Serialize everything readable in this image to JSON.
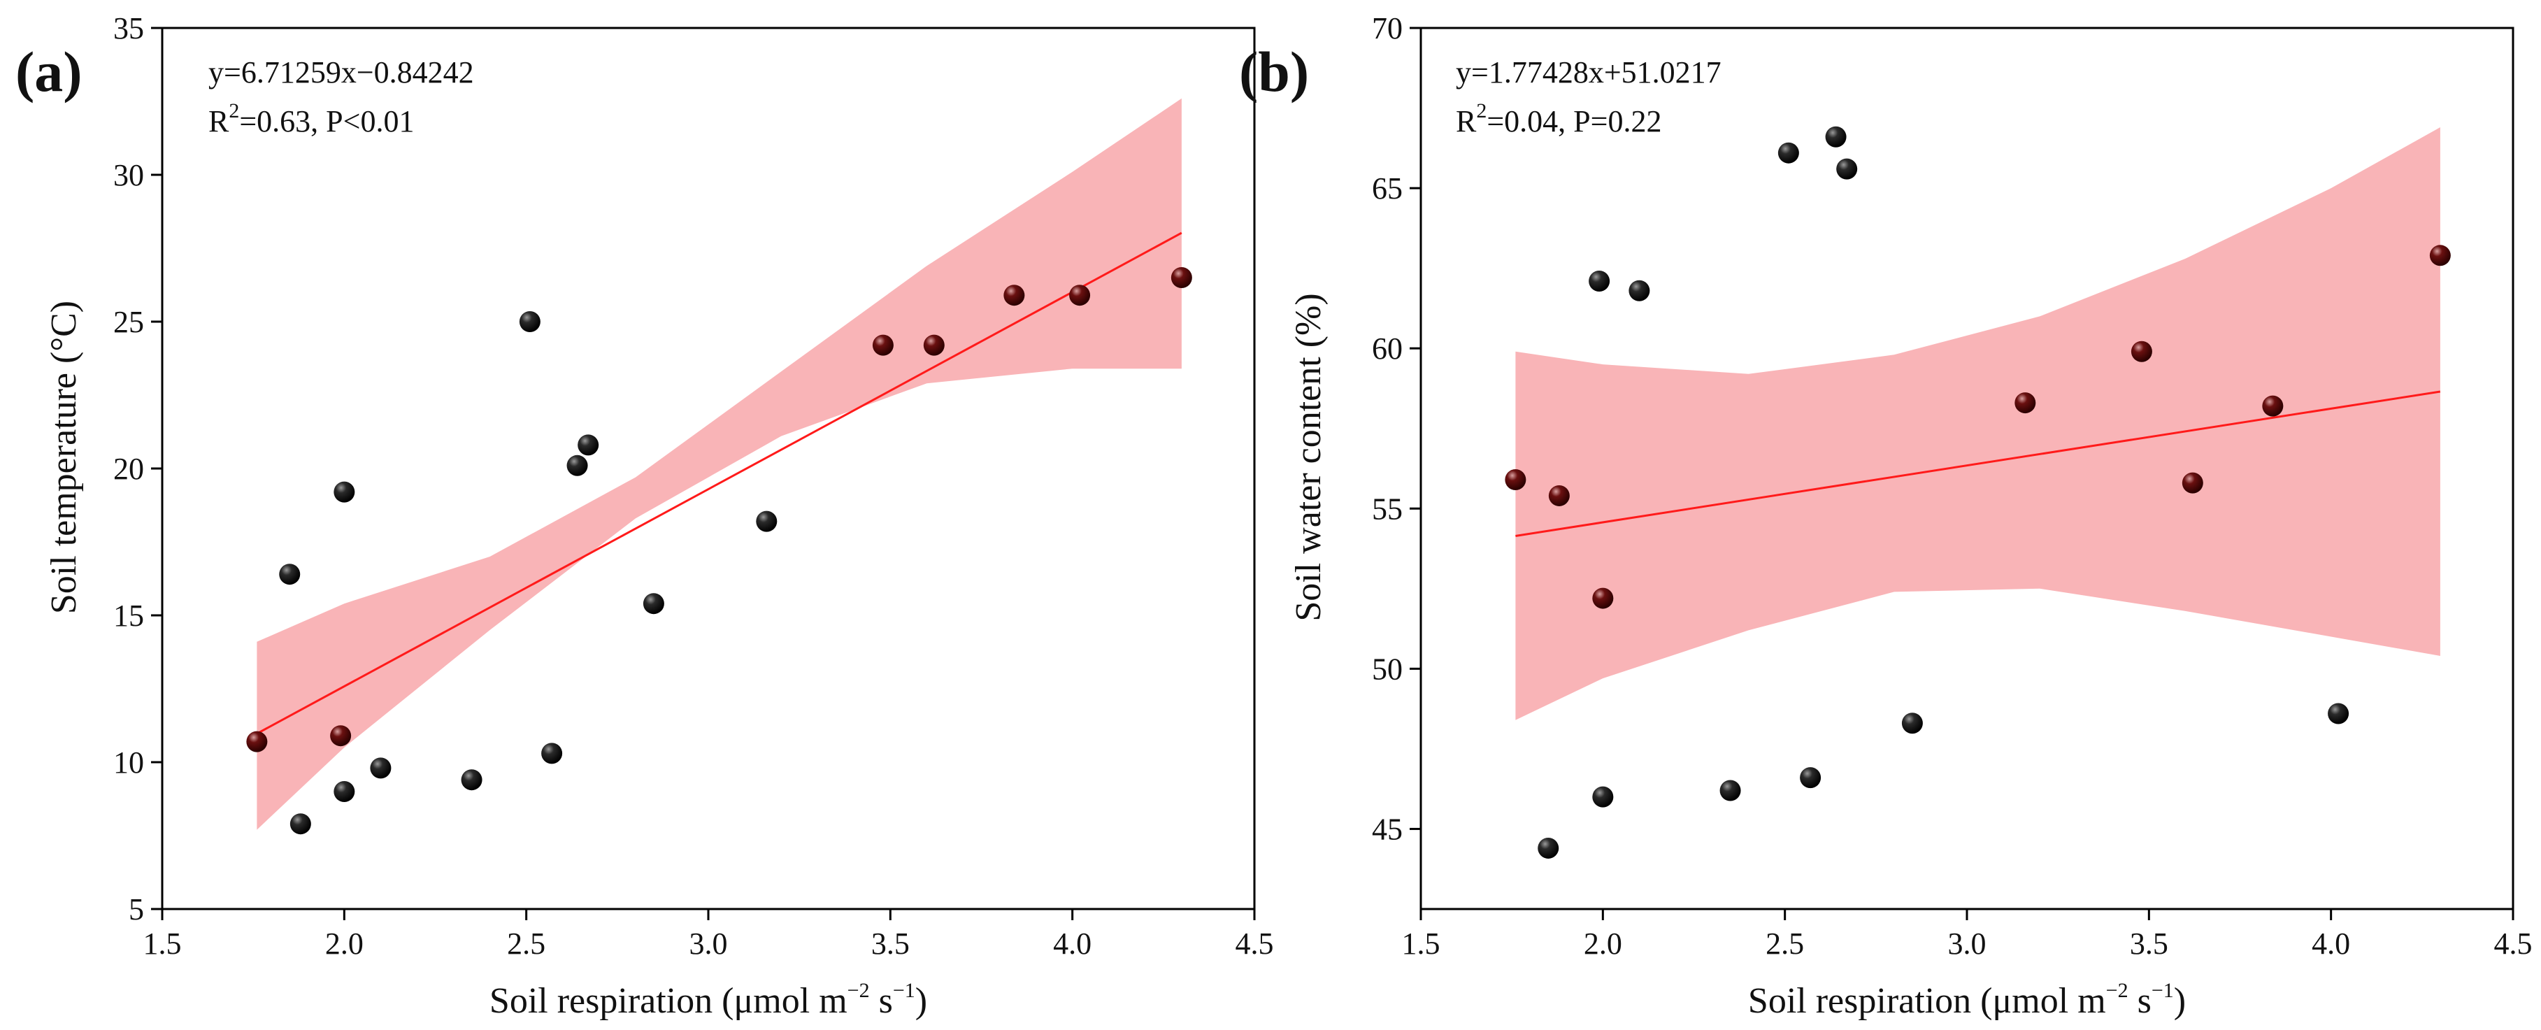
{
  "chart_data": [
    {
      "type": "scatter",
      "panel_label": "(a)",
      "title": "",
      "xlabel": "Soil respiration (μmol m",
      "xlabel_sup1": "−2",
      "xlabel_mid": " s",
      "xlabel_sup2": "−1",
      "xlabel_end": ")",
      "ylabel": "Soil temperature (°C)",
      "xlim": [
        1.5,
        4.5
      ],
      "ylim": [
        5,
        35
      ],
      "xticks": [
        "1.5",
        "2.0",
        "2.5",
        "3.0",
        "3.5",
        "4.0",
        "4.5"
      ],
      "yticks": [
        "5",
        "10",
        "15",
        "20",
        "25",
        "30",
        "35"
      ],
      "equation": "y=6.71259x−0.84242",
      "stat_prefix": "R",
      "stat_sup": "2",
      "stat_rest": "=0.63, P<0.01",
      "fit": {
        "slope": 6.71259,
        "intercept": -0.84242,
        "x_range": [
          1.76,
          4.3
        ]
      },
      "band": {
        "x": [
          1.76,
          2.0,
          2.4,
          2.8,
          3.2,
          3.6,
          4.0,
          4.3
        ],
        "lower": [
          7.7,
          10.5,
          14.5,
          18.3,
          21.1,
          22.9,
          23.4,
          23.4
        ],
        "upper": [
          14.1,
          15.4,
          17.0,
          19.7,
          23.3,
          26.9,
          30.1,
          32.6
        ]
      },
      "points": [
        {
          "x": 1.76,
          "y": 10.7
        },
        {
          "x": 1.85,
          "y": 16.4
        },
        {
          "x": 1.88,
          "y": 7.9
        },
        {
          "x": 1.99,
          "y": 10.9
        },
        {
          "x": 2.0,
          "y": 19.2
        },
        {
          "x": 2.0,
          "y": 9.0
        },
        {
          "x": 2.1,
          "y": 9.8
        },
        {
          "x": 2.35,
          "y": 9.4
        },
        {
          "x": 2.51,
          "y": 25.0
        },
        {
          "x": 2.57,
          "y": 10.3
        },
        {
          "x": 2.64,
          "y": 20.1
        },
        {
          "x": 2.67,
          "y": 20.8
        },
        {
          "x": 2.85,
          "y": 15.4
        },
        {
          "x": 3.16,
          "y": 18.2
        },
        {
          "x": 3.48,
          "y": 24.2
        },
        {
          "x": 3.62,
          "y": 24.2
        },
        {
          "x": 3.84,
          "y": 25.9
        },
        {
          "x": 4.02,
          "y": 25.9
        },
        {
          "x": 4.3,
          "y": 26.5
        }
      ],
      "colors": {
        "band": "#f9b4b7",
        "line": "#ff1a1a",
        "point": "#111111",
        "point_in_band": "#5a0a0a"
      }
    },
    {
      "type": "scatter",
      "panel_label": "(b)",
      "title": "",
      "xlabel": "Soil respiration (μmol m",
      "xlabel_sup1": "−2",
      "xlabel_mid": " s",
      "xlabel_sup2": "−1",
      "xlabel_end": ")",
      "ylabel": "Soil water content (%)",
      "xlim": [
        1.5,
        4.5
      ],
      "ylim": [
        42.5,
        70
      ],
      "xticks": [
        "1.5",
        "2.0",
        "2.5",
        "3.0",
        "3.5",
        "4.0",
        "4.5"
      ],
      "yticks": [
        "45",
        "50",
        "55",
        "60",
        "65",
        "70"
      ],
      "equation": "y=1.77428x+51.0217",
      "stat_prefix": "R",
      "stat_sup": "2",
      "stat_rest": "=0.04, P=0.22",
      "fit": {
        "slope": 1.77428,
        "intercept": 51.0217,
        "x_range": [
          1.76,
          4.3
        ]
      },
      "band": {
        "x": [
          1.76,
          2.0,
          2.4,
          2.8,
          3.2,
          3.6,
          4.0,
          4.3
        ],
        "lower": [
          48.4,
          49.7,
          51.2,
          52.4,
          52.5,
          51.8,
          51.0,
          50.4
        ],
        "upper": [
          59.9,
          59.5,
          59.2,
          59.8,
          61.0,
          62.8,
          65.0,
          66.9
        ]
      },
      "points": [
        {
          "x": 1.76,
          "y": 55.9
        },
        {
          "x": 1.85,
          "y": 44.4
        },
        {
          "x": 1.88,
          "y": 55.4
        },
        {
          "x": 1.99,
          "y": 62.1
        },
        {
          "x": 2.0,
          "y": 52.2
        },
        {
          "x": 2.0,
          "y": 46.0
        },
        {
          "x": 2.1,
          "y": 61.8
        },
        {
          "x": 2.35,
          "y": 46.2
        },
        {
          "x": 2.51,
          "y": 66.1
        },
        {
          "x": 2.57,
          "y": 46.6
        },
        {
          "x": 2.64,
          "y": 66.6
        },
        {
          "x": 2.67,
          "y": 65.6
        },
        {
          "x": 2.85,
          "y": 48.3
        },
        {
          "x": 3.16,
          "y": 58.3
        },
        {
          "x": 3.48,
          "y": 59.9
        },
        {
          "x": 3.62,
          "y": 55.8
        },
        {
          "x": 3.84,
          "y": 58.2
        },
        {
          "x": 4.02,
          "y": 48.6
        },
        {
          "x": 4.3,
          "y": 62.9
        }
      ],
      "colors": {
        "band": "#f9b4b7",
        "line": "#ff1a1a",
        "point": "#111111",
        "point_in_band": "#5a0a0a"
      }
    }
  ]
}
